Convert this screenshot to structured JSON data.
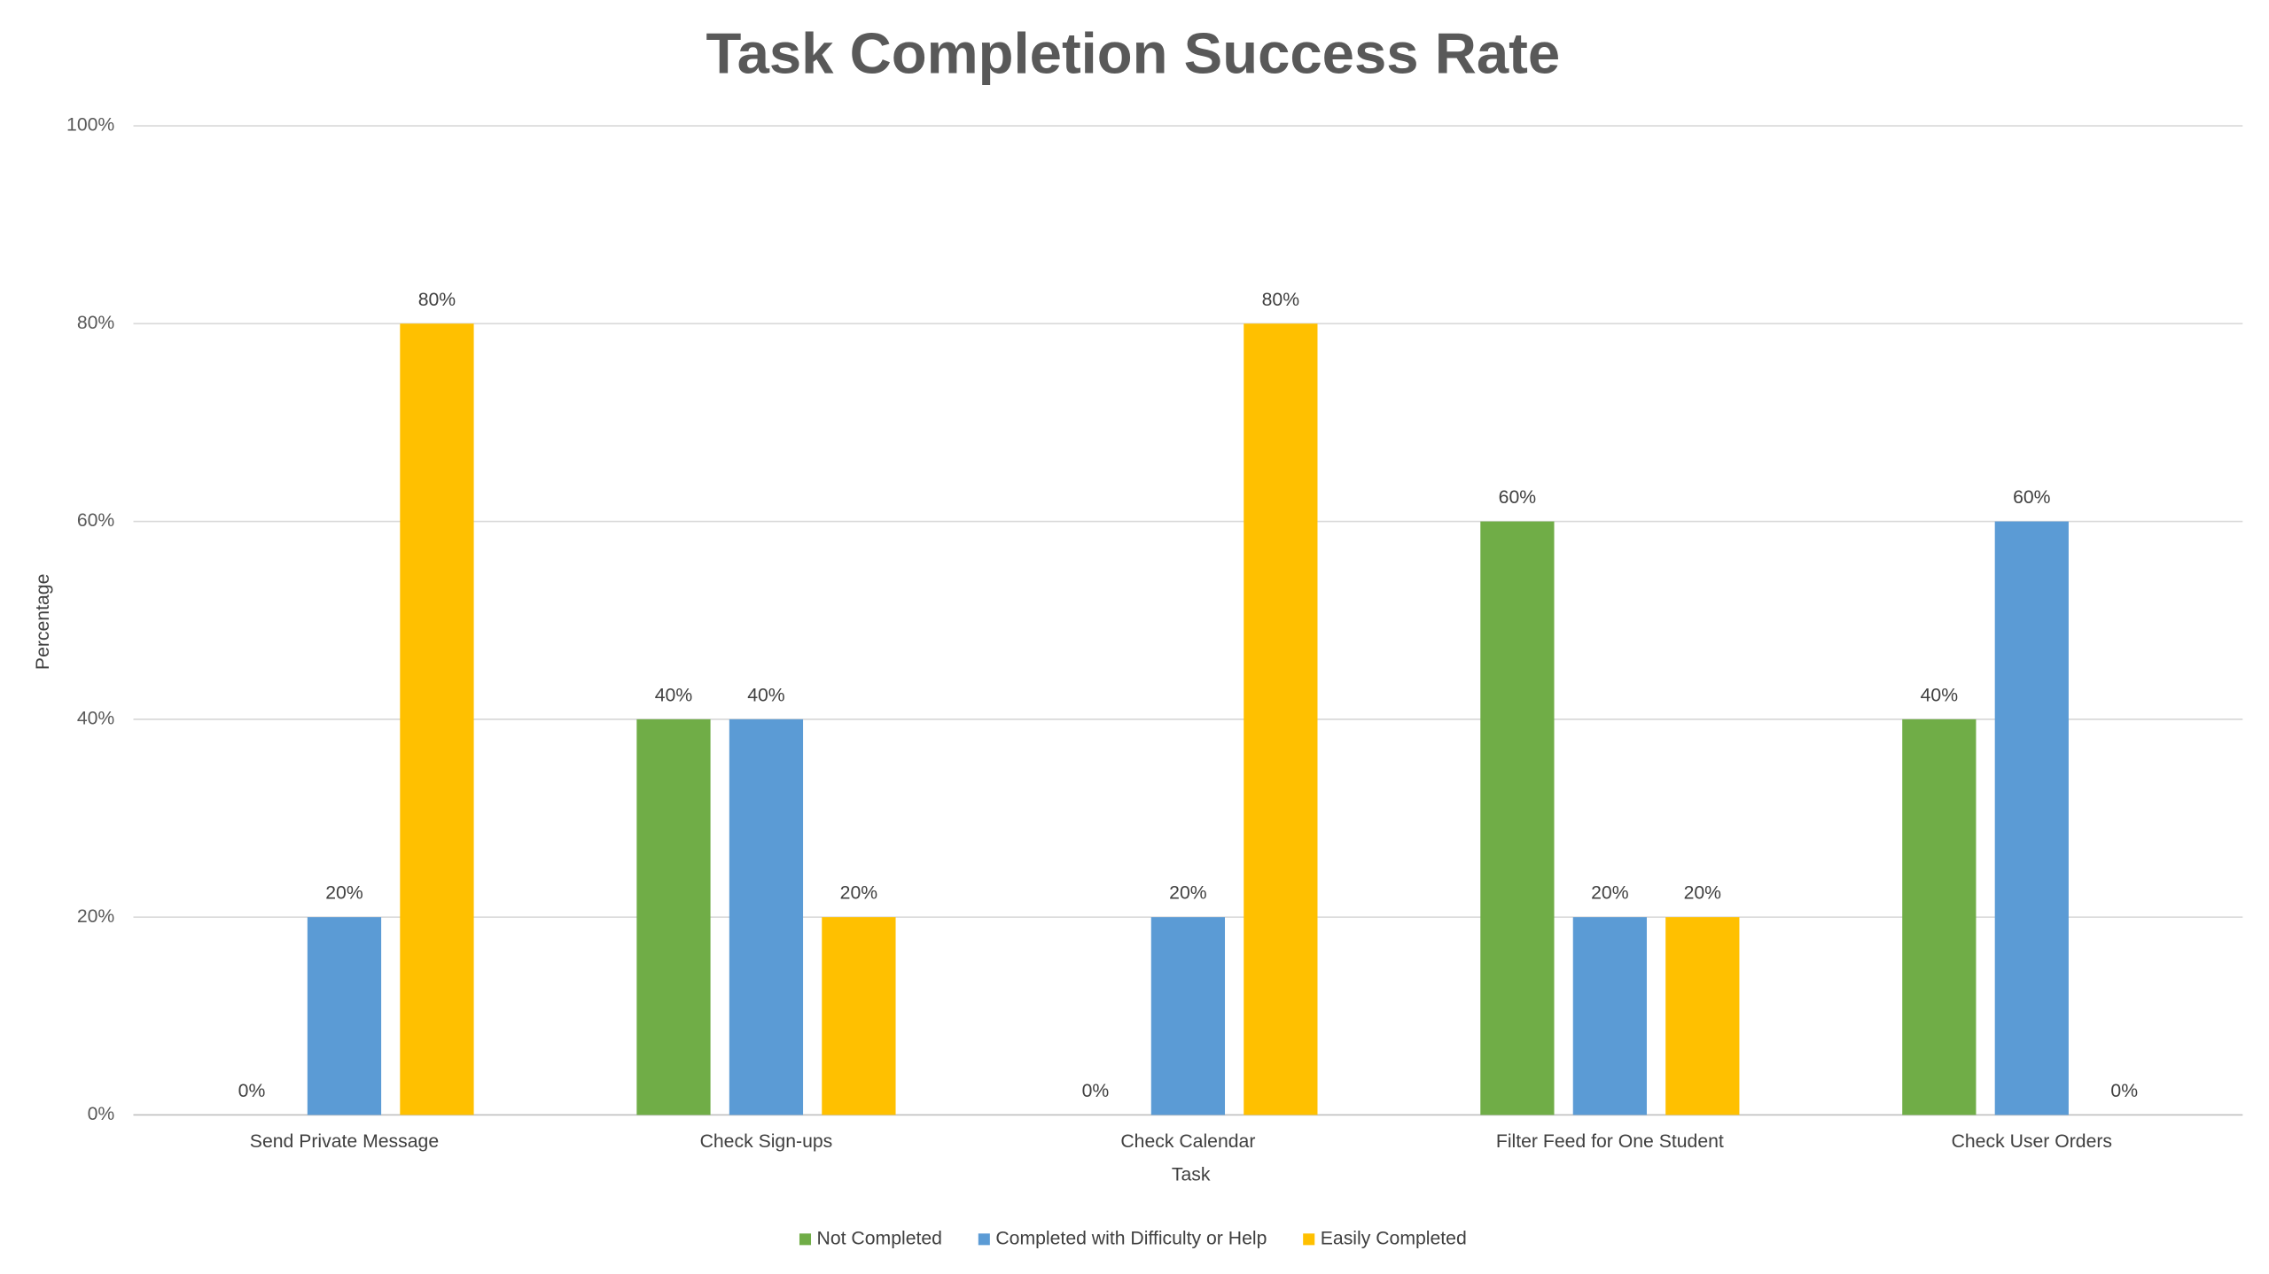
{
  "chart_data": {
    "type": "bar",
    "title": "Task Completion Success Rate",
    "x_label": "Task",
    "y_label": "Percentage",
    "categories": [
      "Send Private Message",
      "Check Sign-ups",
      "Check Calendar",
      "Filter Feed for One Student",
      "Check User Orders"
    ],
    "series": [
      {
        "name": "Not Completed",
        "color": "#70ad47",
        "values": [
          0,
          40,
          0,
          60,
          40
        ],
        "value_labels": [
          "0%",
          "40%",
          "0%",
          "60%",
          "40%"
        ]
      },
      {
        "name": "Completed with Difficulty or Help",
        "color": "#5b9bd5",
        "values": [
          20,
          40,
          20,
          20,
          60
        ],
        "value_labels": [
          "20%",
          "40%",
          "20%",
          "20%",
          "60%"
        ]
      },
      {
        "name": "Easily Completed",
        "color": "#ffc000",
        "values": [
          80,
          20,
          80,
          20,
          0
        ],
        "value_labels": [
          "80%",
          "20%",
          "80%",
          "20%",
          "0%"
        ]
      }
    ],
    "ylim": [
      0,
      100
    ],
    "yticks": [
      {
        "value": 0,
        "label": "0%"
      },
      {
        "value": 20,
        "label": "20%"
      },
      {
        "value": 40,
        "label": "40%"
      },
      {
        "value": 60,
        "label": "60%"
      },
      {
        "value": 80,
        "label": "80%"
      },
      {
        "value": 100,
        "label": "100%"
      }
    ],
    "grid": true,
    "legend": "bottom"
  }
}
